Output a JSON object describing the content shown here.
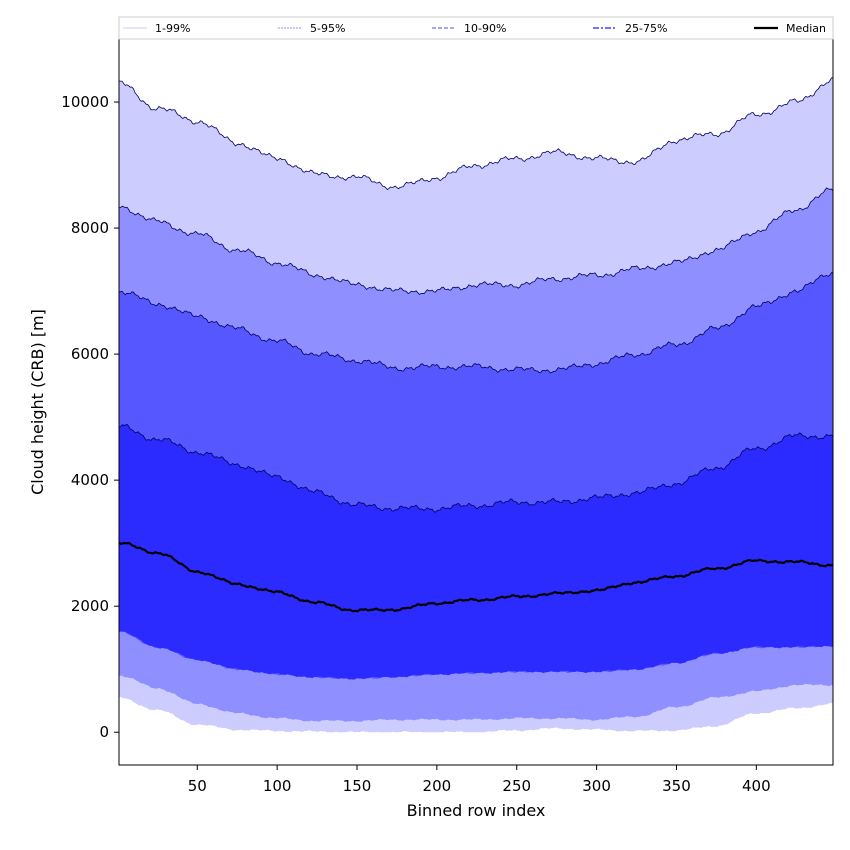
{
  "chart_data": {
    "type": "area",
    "xlabel": "Binned row index",
    "ylabel": "Cloud height (CRB) [m]",
    "xlim": [
      1,
      448
    ],
    "ylim": [
      -520,
      11000
    ],
    "xticks": [
      50,
      100,
      150,
      200,
      250,
      300,
      350,
      400
    ],
    "yticks": [
      0,
      2000,
      4000,
      6000,
      8000,
      10000
    ],
    "legend": {
      "placement": "top",
      "entries": [
        "1-99%",
        "5-95%",
        "10-90%",
        "25-75%",
        "Median"
      ]
    },
    "colors": {
      "band_1_99": "#ccccff",
      "band_5_95": "#8f8fff",
      "band_10_90": "#5757ff",
      "band_25_75": "#2b2bff",
      "median": "#000000",
      "upper_edge": "#00005a"
    },
    "x": [
      1,
      25,
      50,
      75,
      100,
      125,
      150,
      175,
      200,
      225,
      250,
      275,
      300,
      325,
      350,
      375,
      400,
      425,
      448
    ],
    "series": [
      {
        "name": "1-99%",
        "lower": [
          550,
          350,
          120,
          40,
          20,
          10,
          0,
          0,
          0,
          0,
          30,
          60,
          40,
          20,
          30,
          100,
          300,
          380,
          450
        ],
        "upper": [
          10300,
          9900,
          9700,
          9350,
          9100,
          8850,
          8800,
          8650,
          8800,
          9000,
          9100,
          9200,
          9100,
          9050,
          9400,
          9500,
          9800,
          10000,
          10350
        ]
      },
      {
        "name": "5-95%",
        "lower": [
          900,
          700,
          450,
          300,
          220,
          180,
          180,
          200,
          200,
          200,
          220,
          220,
          200,
          250,
          400,
          550,
          650,
          750,
          750
        ],
        "upper": [
          8350,
          8100,
          7900,
          7650,
          7450,
          7250,
          7100,
          7000,
          7000,
          7100,
          7100,
          7200,
          7250,
          7350,
          7450,
          7650,
          7950,
          8300,
          8600
        ]
      },
      {
        "name": "10-90%",
        "lower": [
          1600,
          1350,
          1150,
          1000,
          920,
          870,
          850,
          880,
          920,
          940,
          960,
          960,
          960,
          1000,
          1100,
          1250,
          1350,
          1350,
          1370
        ],
        "upper": [
          7000,
          6800,
          6600,
          6400,
          6200,
          6000,
          5900,
          5780,
          5800,
          5800,
          5750,
          5750,
          5850,
          6000,
          6150,
          6400,
          6750,
          7000,
          7300
        ]
      },
      {
        "name": "25-75%",
        "lower": [
          1600,
          1350,
          1150,
          1000,
          920,
          870,
          850,
          880,
          920,
          940,
          960,
          960,
          960,
          1000,
          1100,
          1250,
          1350,
          1350,
          1370
        ],
        "upper": [
          4850,
          4650,
          4450,
          4250,
          4050,
          3800,
          3600,
          3550,
          3550,
          3600,
          3650,
          3650,
          3720,
          3800,
          3950,
          4200,
          4500,
          4700,
          4700
        ]
      },
      {
        "name": "Median",
        "values": [
          3000,
          2850,
          2550,
          2350,
          2220,
          2050,
          1930,
          1950,
          2050,
          2100,
          2150,
          2200,
          2250,
          2380,
          2480,
          2600,
          2720,
          2700,
          2650
        ]
      }
    ]
  }
}
